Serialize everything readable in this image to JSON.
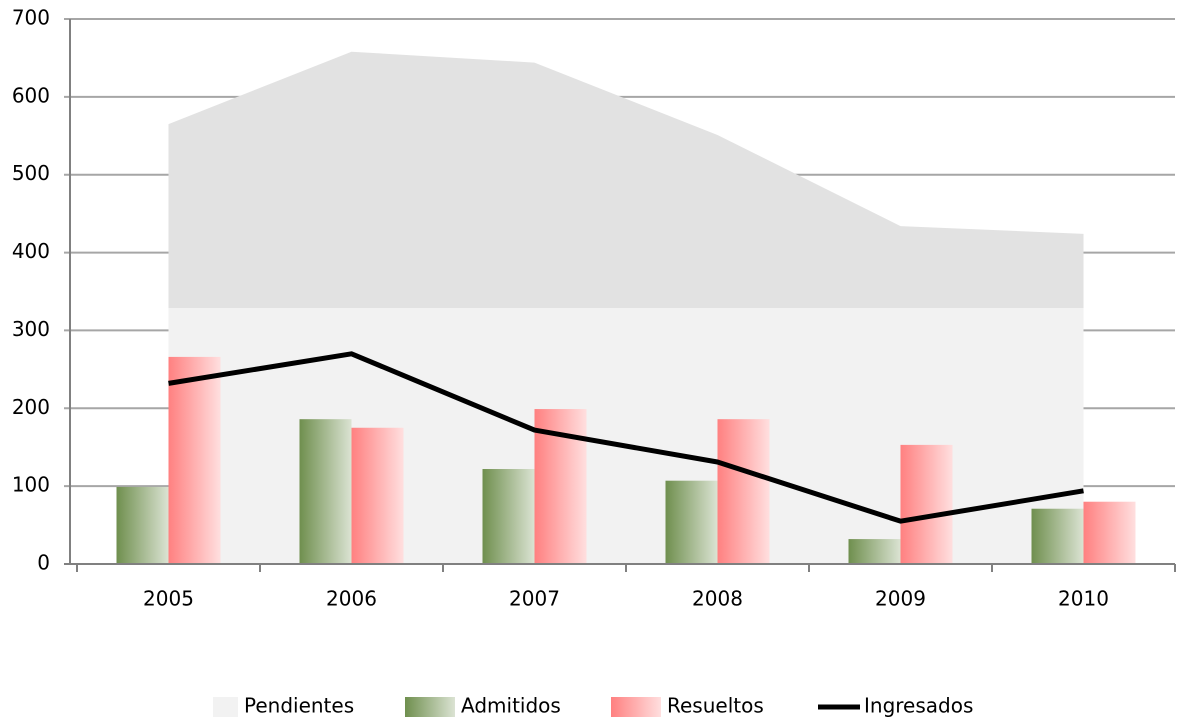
{
  "chart_data": {
    "type": "bar",
    "categories": [
      "2005",
      "2006",
      "2007",
      "2008",
      "2009",
      "2010"
    ],
    "series": [
      {
        "name": "Pendientes",
        "kind": "area",
        "color": "#e2e2e2",
        "values": [
          565,
          658,
          644,
          551,
          434,
          424
        ]
      },
      {
        "name": "Admitidos",
        "kind": "bar",
        "color": "#6f8f4e",
        "values": [
          99,
          186,
          122,
          107,
          32,
          71
        ]
      },
      {
        "name": "Resueltos",
        "kind": "bar",
        "color": "#ff8080",
        "values": [
          266,
          175,
          199,
          186,
          153,
          80
        ]
      },
      {
        "name": "Ingresados",
        "kind": "line",
        "color": "#000000",
        "values": [
          232,
          270,
          172,
          131,
          55,
          94
        ]
      }
    ],
    "ylim": [
      0,
      700
    ],
    "yticks": [
      0,
      100,
      200,
      300,
      400,
      500,
      600,
      700
    ],
    "grid": true,
    "legend": "bottom"
  }
}
